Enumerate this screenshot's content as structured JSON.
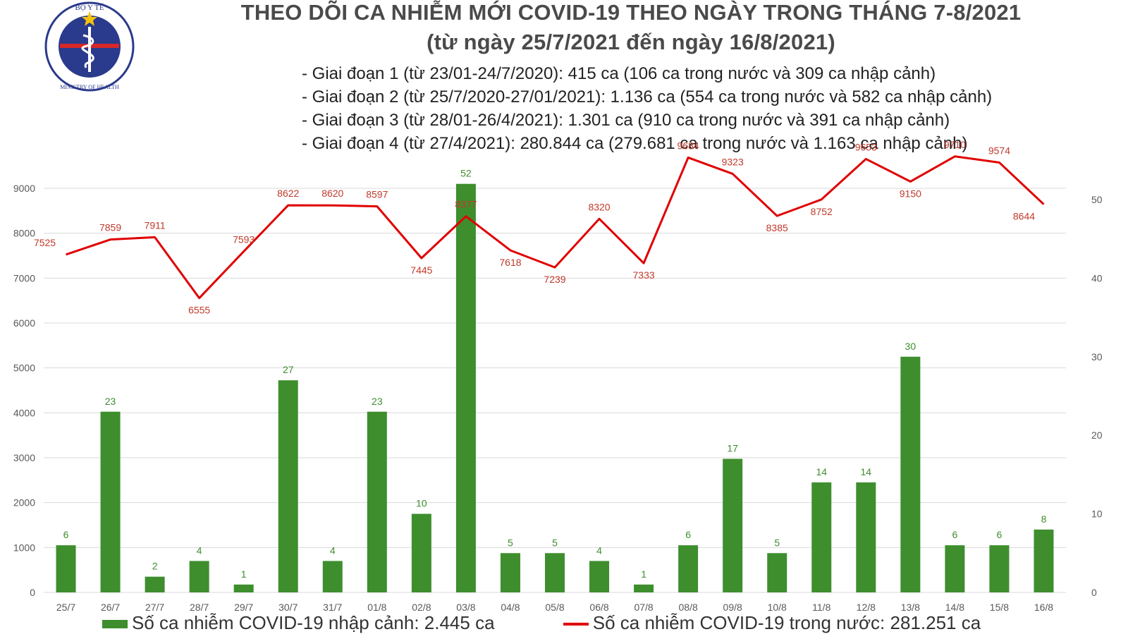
{
  "logo": {
    "top_text": "BỘ Y TẾ",
    "bottom_text": "MINISTRY OF HEALTH"
  },
  "title": "THEO DÕI CA NHIỄM MỚI COVID-19 THEO NGÀY TRONG THÁNG 7-8/2021",
  "subtitle": "(từ ngày 25/7/2021 đến ngày 16/8/2021)",
  "phases": [
    "- Giai đoạn 1 (từ 23/01-24/7/2020): 415 ca (106 ca trong nước và 309 ca nhập cảnh)",
    "- Giai đoạn 2 (từ 25/7/2020-27/01/2021): 1.136 ca (554 ca trong nước và 582 ca nhập cảnh)",
    "- Giai đoạn 3 (từ 28/01-26/4/2021): 1.301 ca (910 ca trong nước và 391 ca nhập cảnh)",
    "- Giai đoạn 4 (từ 27/4/2021): 280.844 ca (279.681 ca trong nước và 1.163 ca nhập cảnh)"
  ],
  "legend": {
    "bar_label": "Số ca nhiễm COVID-19 nhập cảnh: 2.445 ca",
    "line_label": "Số ca nhiễm COVID-19 trong nước: 281.251 ca"
  },
  "colors": {
    "bar": "#3e8e2e",
    "line": "#e00000",
    "line_label": "#c0392b",
    "bar_label": "#3e8e2e",
    "grid": "#d9d9d9"
  },
  "chart_data": {
    "type": "bar+line",
    "categories": [
      "25/7",
      "26/7",
      "27/7",
      "28/7",
      "29/7",
      "30/7",
      "31/7",
      "01/8",
      "02/8",
      "03/8",
      "04/8",
      "05/8",
      "06/8",
      "07/8",
      "08/8",
      "09/8",
      "10/8",
      "11/8",
      "12/8",
      "13/8",
      "14/8",
      "15/8",
      "16/8"
    ],
    "series": [
      {
        "name": "Số ca nhiễm COVID-19 nhập cảnh: 2.445 ca",
        "type": "bar",
        "axis": "right",
        "values": [
          6,
          23,
          2,
          4,
          1,
          27,
          4,
          23,
          10,
          52,
          5,
          5,
          4,
          1,
          6,
          17,
          5,
          14,
          14,
          30,
          6,
          6,
          8
        ]
      },
      {
        "name": "Số ca nhiễm COVID-19 trong nước: 281.251 ca",
        "type": "line",
        "axis": "left",
        "values": [
          7525,
          7859,
          7911,
          6555,
          7593,
          8622,
          8620,
          8597,
          7445,
          8377,
          7618,
          7239,
          8320,
          7333,
          9684,
          9323,
          8385,
          8752,
          9653,
          9150,
          9710,
          9574,
          8644
        ]
      }
    ],
    "y_left": {
      "min": 0,
      "max": 9000,
      "ticks": [
        0,
        1000,
        2000,
        3000,
        4000,
        5000,
        6000,
        7000,
        8000,
        9000
      ]
    },
    "y_right": {
      "min": 0,
      "max": 50,
      "ticks": [
        0,
        10,
        20,
        30,
        40,
        50
      ]
    },
    "grid": true,
    "legend_position": "bottom"
  }
}
